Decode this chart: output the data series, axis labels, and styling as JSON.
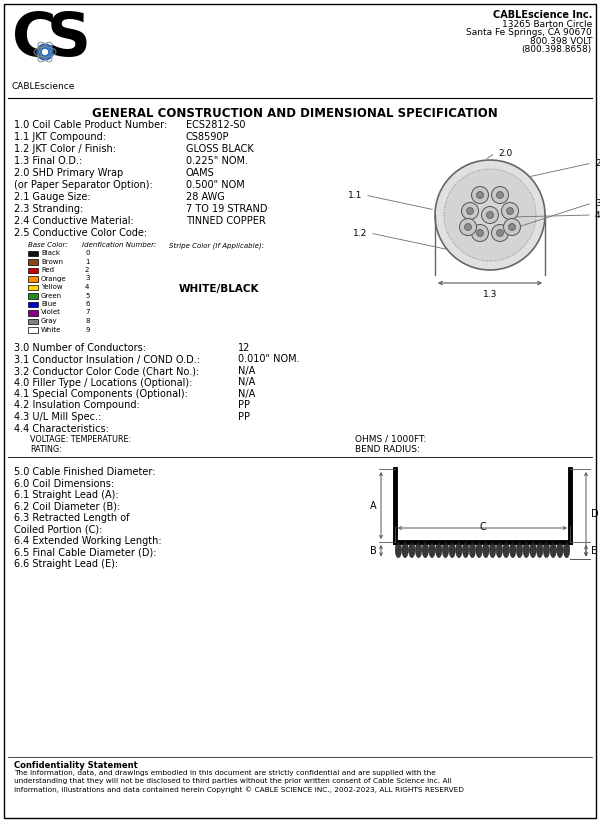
{
  "title": "GENERAL CONSTRUCTION AND DIMENSIONAL SPECIFICATION",
  "company_name": "CABLEscience Inc.",
  "company_address_lines": [
    "13265 Barton Circle",
    "Santa Fe Springs, CA 90670",
    "800.398 VOLT",
    "(800.398.8658)"
  ],
  "specs": [
    [
      "1.0 Coil Cable Product Number:",
      "ECS2812-S0"
    ],
    [
      "1.1 JKT Compound:",
      "CS8590P"
    ],
    [
      "1.2 JKT Color / Finish:",
      "GLOSS BLACK"
    ],
    [
      "1.3 Final O.D.:",
      "0.225\" NOM."
    ],
    [
      "2.0 SHD Primary Wrap",
      "OAMS"
    ],
    [
      "(or Paper Separator Option):",
      "0.500\" NOM"
    ],
    [
      "2.1 Gauge Size:",
      "28 AWG"
    ],
    [
      "2.3 Stranding:",
      "7 TO 19 STRAND"
    ],
    [
      "2.4 Conductive Material:",
      "TINNED COPPER"
    ],
    [
      "2.5 Conductive Color Code:",
      ""
    ]
  ],
  "color_table_headers": [
    "Base Color:",
    "Idenfication Number:",
    "Stripe Color (If Applicable):"
  ],
  "color_table": [
    [
      "Black",
      "0",
      "#111111"
    ],
    [
      "Brown",
      "1",
      "#8B4513"
    ],
    [
      "Red",
      "2",
      "#CC0000"
    ],
    [
      "Orange",
      "3",
      "#FF8C00"
    ],
    [
      "Yellow",
      "4",
      "#FFD700"
    ],
    [
      "Green",
      "5",
      "#228B22"
    ],
    [
      "Blue",
      "6",
      "#0000CD"
    ],
    [
      "Violet",
      "7",
      "#8B008B"
    ],
    [
      "Gray",
      "8",
      "#808080"
    ],
    [
      "White",
      "9",
      "#FFFFFF"
    ]
  ],
  "stripe_color": "WHITE/BLACK",
  "specs2": [
    [
      "3.0 Number of Conductors:",
      "12"
    ],
    [
      "3.1 Conductor Insulation / COND O.D.:",
      "0.010\" NOM."
    ],
    [
      "3.2 Conductor Color Code (Chart No.):",
      "N/A"
    ],
    [
      "4.0 Filler Type / Locations (Optional):",
      "N/A"
    ],
    [
      "4.1 Special Components (Optional):",
      "N/A"
    ],
    [
      "4.2 Insulation Compound:",
      "PP"
    ],
    [
      "4.3 U/L Mill Spec.:",
      "PP"
    ],
    [
      "4.4 Characteristics:",
      ""
    ]
  ],
  "char_sub": [
    "VOLTAGE: TEMPERATURE:",
    "RATING:"
  ],
  "ohms_label": "OHMS / 1000FT:",
  "bend_radius_label": "BEND RADIUS:",
  "specs3": [
    "5.0 Cable Finished Diameter:",
    "6.0 Coil Dimensions:",
    "6.1 Straight Lead (A):",
    "6.2 Coil Diameter (B):",
    "6.3 Retracted Length of",
    "Coiled Portion (C):",
    "6.4 Extended Working Length:",
    "6.5 Final Cable Diameter (D):",
    "6.6 Straight Lead (E):"
  ],
  "confidentiality_title": "Confidentiality Statement",
  "confidentiality_text": "The information, data, and drawings embodied in this document are strictly confidential and are supplied with the\nunderstanding that they will not be disclosed to third parties without the prior written consent of Cable Science Inc. All\ninformation, illustrations and data contained herein Copyright © CABLE SCIENCE INC., 2002-2023, ALL RIGHTS RESERVED",
  "bg_color": "#ffffff"
}
